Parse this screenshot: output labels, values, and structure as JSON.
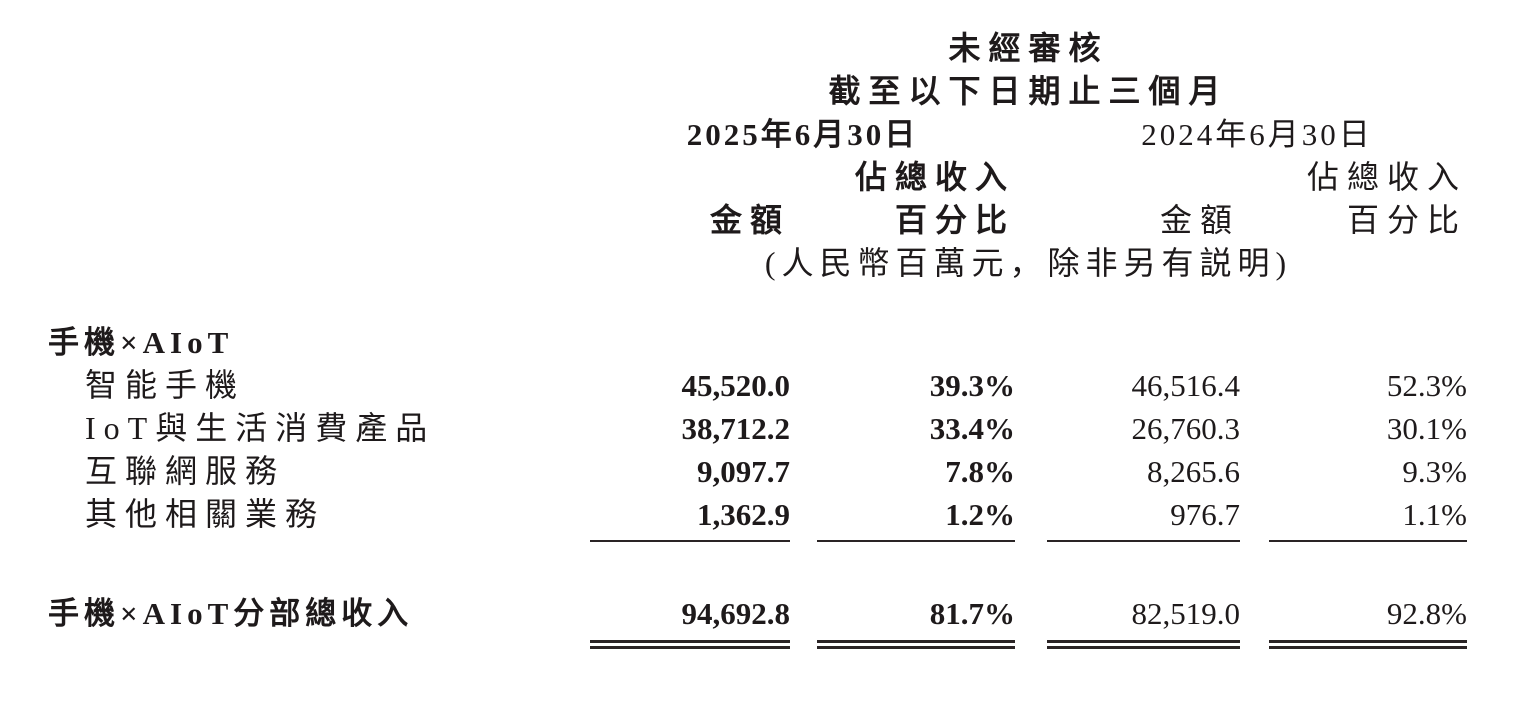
{
  "colors": {
    "text": "#1e1a1b",
    "rule": "#2a2425",
    "background": "#ffffff"
  },
  "table": {
    "header": {
      "unaudited": "未經審核",
      "period": "截至以下日期止三個月",
      "date_2025": "2025年6月30日",
      "date_2024": "2024年6月30日",
      "pct_of_revenue": "佔總收入",
      "amount": "金額",
      "percentage": "百分比",
      "unit_note": "(人民幣百萬元，除非另有説明)"
    },
    "section_title": "手機×AIoT",
    "rows": [
      {
        "label": "智能手機",
        "amount_2025": "45,520.0",
        "pct_2025": "39.3%",
        "amount_2024": "46,516.4",
        "pct_2024": "52.3%"
      },
      {
        "label": "IoT與生活消費產品",
        "amount_2025": "38,712.2",
        "pct_2025": "33.4%",
        "amount_2024": "26,760.3",
        "pct_2024": "30.1%"
      },
      {
        "label": "互聯網服務",
        "amount_2025": "9,097.7",
        "pct_2025": "7.8%",
        "amount_2024": "8,265.6",
        "pct_2024": "9.3%"
      },
      {
        "label": "其他相關業務",
        "amount_2025": "1,362.9",
        "pct_2025": "1.2%",
        "amount_2024": "976.7",
        "pct_2024": "1.1%"
      }
    ],
    "total": {
      "label": "手機×AIoT分部總收入",
      "amount_2025": "94,692.8",
      "pct_2025": "81.7%",
      "amount_2024": "82,519.0",
      "pct_2024": "92.8%"
    }
  }
}
